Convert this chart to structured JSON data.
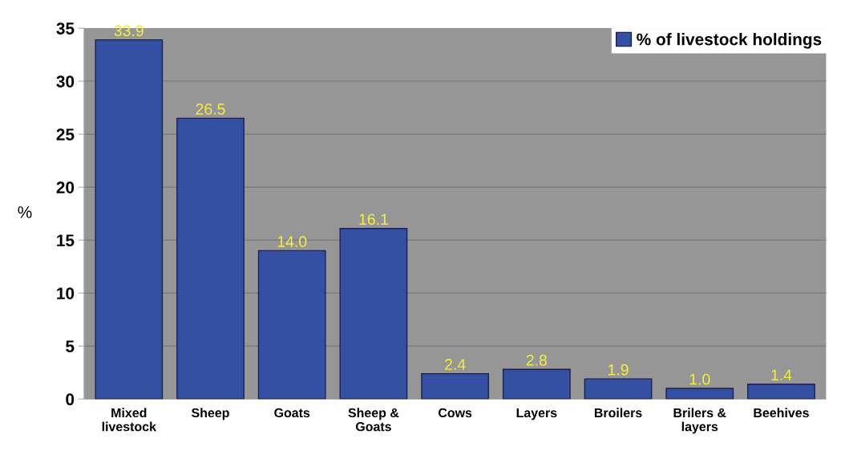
{
  "chart_data": {
    "type": "bar",
    "categories": [
      "Mixed\nlivestock",
      "Sheep",
      "Goats",
      "Sheep &\nGoats",
      "Cows",
      "Layers",
      "Broilers",
      "Brilers &\nlayers",
      "Beehives"
    ],
    "series": [
      {
        "name": "% of livestock holdings",
        "color": "#3350a2",
        "values": [
          33.9,
          26.5,
          14.0,
          16.1,
          2.4,
          2.8,
          1.9,
          1.0,
          1.4
        ],
        "value_labels": [
          "33.9",
          "26.5",
          "14.0",
          "16.1",
          "2.4",
          "2.8",
          "1.9",
          "1.0",
          "1.4"
        ]
      }
    ],
    "ylabel": "%",
    "ylim": [
      0,
      35
    ],
    "yticks": [
      0,
      5,
      10,
      15,
      20,
      25,
      30,
      35
    ],
    "grid": "y",
    "legend": "top right"
  }
}
